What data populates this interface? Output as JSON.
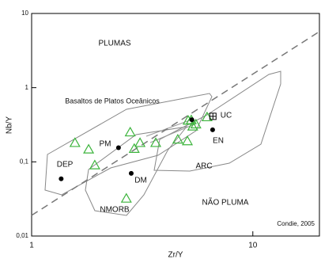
{
  "chart_data": {
    "type": "scatter",
    "x_label": "Zr/Y",
    "y_label": "Nb/Y",
    "log_x": true,
    "log_y": true,
    "xlim": [
      1,
      20
    ],
    "ylim": [
      0.01,
      10
    ],
    "xticks": [
      1,
      10
    ],
    "yticks": [
      {
        "value": 0.01,
        "label": "0,01"
      },
      {
        "value": 0.1,
        "label": "0,1"
      },
      1,
      10
    ],
    "point_sets": [
      {
        "marker": "triangle",
        "color": "#3cb43c",
        "x": [
          1.57,
          1.81,
          1.93,
          2.79,
          2.91,
          3.09,
          2.68,
          3.64,
          4.58,
          5.1,
          5.27,
          5.35,
          5.06,
          5.53,
          6.21
        ],
        "y": [
          0.18,
          0.147,
          0.09,
          0.25,
          0.15,
          0.18,
          0.032,
          0.18,
          0.2,
          0.36,
          0.365,
          0.3,
          0.19,
          0.32,
          0.4
        ]
      },
      {
        "marker": "dot",
        "color": "#000000",
        "x": [
          1.36,
          2.47,
          2.82,
          6.58,
          5.3
        ],
        "y": [
          0.059,
          0.155,
          0.07,
          0.27,
          0.37
        ]
      },
      {
        "marker": "boxed-cross",
        "color": "#000000",
        "x": [
          6.6
        ],
        "y": [
          0.41
        ]
      }
    ],
    "reference_line": {
      "x": [
        1,
        20
      ],
      "y": [
        0.019,
        5.7
      ],
      "color": "#777777",
      "dashed": true
    },
    "annotations": [
      "PLUMAS",
      "Basaltos de Platos Oceânicos",
      "DEP",
      "PM",
      "DM",
      "EN",
      "UC",
      "NMORB",
      "ARC",
      "NÃO PLUMA",
      "Condie, 2005"
    ]
  }
}
